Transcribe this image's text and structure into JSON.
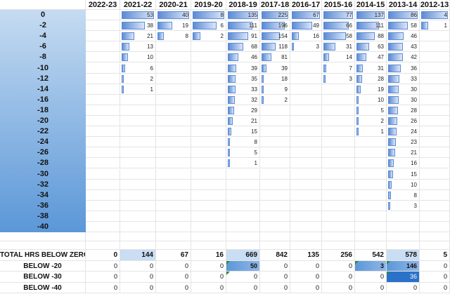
{
  "years": [
    "2022-23",
    "2021-22",
    "2020-21",
    "2019-20",
    "2018-19",
    "2017-18",
    "2016-17",
    "2015-16",
    "2014-15",
    "2013-14",
    "2012-13"
  ],
  "temps": [
    "0",
    "-2",
    "-4",
    "-6",
    "-8",
    "-10",
    "-12",
    "-14",
    "-16",
    "-18",
    "-20",
    "-22",
    "-24",
    "-26",
    "-28",
    "-30",
    "-32",
    "-34",
    "-36",
    "-38",
    "-40"
  ],
  "grid": [
    [
      "",
      "53",
      "40",
      "8",
      "135",
      "225",
      "67",
      "77",
      "137",
      "86",
      "4"
    ],
    [
      "",
      "38",
      "19",
      "6",
      "111",
      "196",
      "49",
      "66",
      "111",
      "58",
      "1"
    ],
    [
      "",
      "21",
      "8",
      "2",
      "91",
      "154",
      "16",
      "58",
      "88",
      "46",
      ""
    ],
    [
      "",
      "13",
      "",
      "",
      "68",
      "118",
      "3",
      "31",
      "63",
      "43",
      ""
    ],
    [
      "",
      "10",
      "",
      "",
      "46",
      "81",
      "",
      "14",
      "47",
      "42",
      ""
    ],
    [
      "",
      "6",
      "",
      "",
      "39",
      "39",
      "",
      "7",
      "31",
      "36",
      ""
    ],
    [
      "",
      "2",
      "",
      "",
      "35",
      "18",
      "",
      "3",
      "28",
      "33",
      ""
    ],
    [
      "",
      "1",
      "",
      "",
      "33",
      "9",
      "",
      "",
      "19",
      "30",
      ""
    ],
    [
      "",
      "",
      "",
      "",
      "32",
      "2",
      "",
      "",
      "10",
      "30",
      ""
    ],
    [
      "",
      "",
      "",
      "",
      "29",
      "",
      "",
      "",
      "5",
      "28",
      ""
    ],
    [
      "",
      "",
      "",
      "",
      "21",
      "",
      "",
      "",
      "2",
      "26",
      ""
    ],
    [
      "",
      "",
      "",
      "",
      "15",
      "",
      "",
      "",
      "1",
      "24",
      ""
    ],
    [
      "",
      "",
      "",
      "",
      "8",
      "",
      "",
      "",
      "",
      "23",
      ""
    ],
    [
      "",
      "",
      "",
      "",
      "5",
      "",
      "",
      "",
      "",
      "21",
      ""
    ],
    [
      "",
      "",
      "",
      "",
      "1",
      "",
      "",
      "",
      "",
      "16",
      ""
    ],
    [
      "",
      "",
      "",
      "",
      "",
      "",
      "",
      "",
      "",
      "15",
      ""
    ],
    [
      "",
      "",
      "",
      "",
      "",
      "",
      "",
      "",
      "",
      "10",
      ""
    ],
    [
      "",
      "",
      "",
      "",
      "",
      "",
      "",
      "",
      "",
      "8",
      ""
    ],
    [
      "",
      "",
      "",
      "",
      "",
      "",
      "",
      "",
      "",
      "3",
      ""
    ],
    [
      "",
      "",
      "",
      "",
      "",
      "",
      "",
      "",
      "",
      "",
      ""
    ],
    [
      "",
      "",
      "",
      "",
      "",
      "",
      "",
      "",
      "",
      "",
      ""
    ]
  ],
  "totals_label": "TOTAL HRS BELOW ZERO",
  "totals": [
    "0",
    "144",
    "67",
    "16",
    "669",
    "842",
    "135",
    "256",
    "542",
    "578",
    "5"
  ],
  "below_rows": [
    {
      "label": "BELOW -20",
      "values": [
        "0",
        "0",
        "0",
        "0",
        "50",
        "0",
        "0",
        "0",
        "3",
        "146",
        "0"
      ]
    },
    {
      "label": "BELOW -30",
      "values": [
        "0",
        "0",
        "0",
        "0",
        "0",
        "0",
        "0",
        "0",
        "0",
        "36",
        "0"
      ]
    },
    {
      "label": "BELOW -40",
      "values": [
        "0",
        "0",
        "0",
        "0",
        "0",
        "0",
        "0",
        "0",
        "0",
        "0",
        "0"
      ]
    }
  ],
  "colors": {
    "label_top": "#c5dbf1",
    "label_bottom": "#5b97d8",
    "bar": "#5b8bd6",
    "total_light": "#c9ddf3",
    "highlight_mid": "#5b97d8",
    "highlight_strong": "#2a72c8",
    "flag": "#2e8b3a"
  }
}
